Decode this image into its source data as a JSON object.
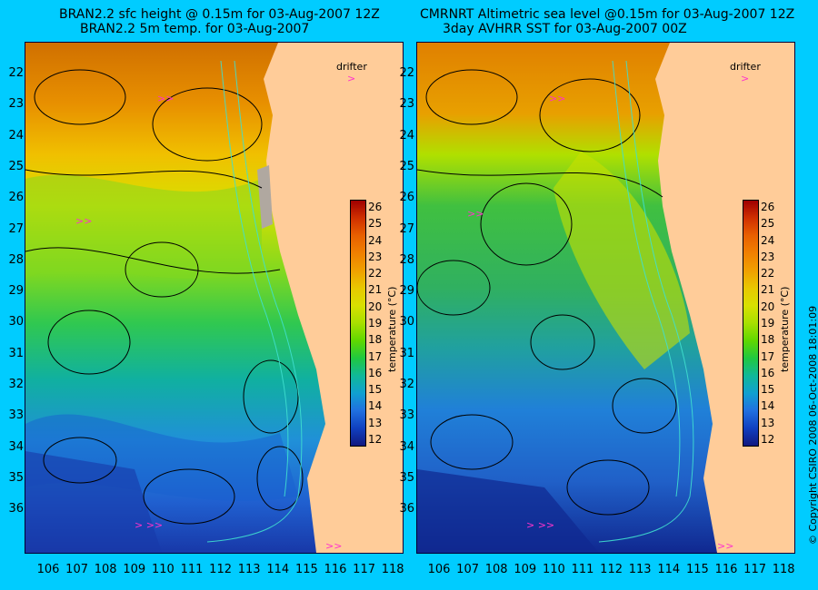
{
  "left": {
    "title1": "BRAN2.2 sfc height @ 0.15m for 03-Aug-2007 12Z",
    "title2": "BRAN2.2 5m temp. for 03-Aug-2007"
  },
  "right": {
    "title1": "CMRNRT Altimetric sea level  @0.15m  for 03-Aug-2007 12Z",
    "title2": "3day AVHRR SST for 03-Aug-2007 00Z"
  },
  "lat_ticks": [
    "22",
    "23",
    "24",
    "25",
    "26",
    "27",
    "28",
    "29",
    "30",
    "31",
    "32",
    "33",
    "34",
    "35",
    "36"
  ],
  "lon_ticks": [
    "106",
    "107",
    "108",
    "109",
    "110",
    "111",
    "112",
    "113",
    "114",
    "115",
    "116",
    "117",
    "118"
  ],
  "colorbar": {
    "ticks": [
      "26",
      "25",
      "24",
      "23",
      "22",
      "21",
      "20",
      "19",
      "18",
      "17",
      "16",
      "15",
      "14",
      "13",
      "12"
    ],
    "label": "temperature (°C)",
    "colors": [
      "#a00000",
      "#d03000",
      "#e86000",
      "#f08000",
      "#f0a000",
      "#e8c800",
      "#d8e000",
      "#a8e000",
      "#60d800",
      "#20c840",
      "#10b898",
      "#10a0d0",
      "#2070e0",
      "#1040c0",
      "#101880"
    ]
  },
  "legend": {
    "drifter": "drifter"
  },
  "copyright": "© Copyright CSIRO 2008   06-Oct-2008 18:01:09",
  "colors": {
    "background": "#00ccff",
    "land": "#ffcc99",
    "drifter": "#ff33cc"
  }
}
